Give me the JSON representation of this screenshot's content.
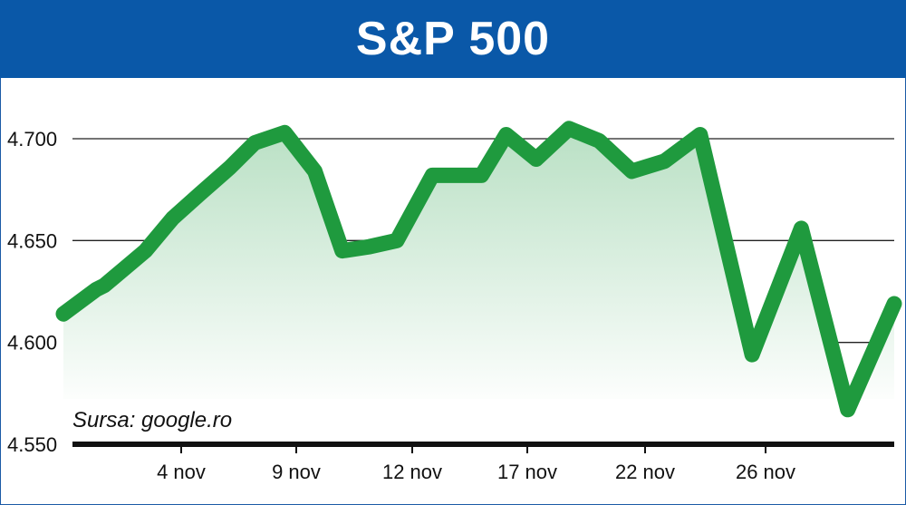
{
  "chart_data": {
    "type": "area",
    "title": "S&P 500",
    "source": "Sursa: google.ro",
    "xlabel": "",
    "ylabel": "",
    "ylim": [
      4550,
      4710
    ],
    "yticks": [
      4550,
      4600,
      4650,
      4700
    ],
    "ytick_labels": [
      "4.550",
      "4.600",
      "4.650",
      "4.700"
    ],
    "xtick_labels": [
      {
        "label": "4 nov",
        "index": 4
      },
      {
        "label": "9 nov",
        "index": 9
      },
      {
        "label": "12 nov",
        "index": 14
      },
      {
        "label": "17 nov",
        "index": 19
      },
      {
        "label": "22 nov",
        "index": 24
      },
      {
        "label": "26 nov",
        "index": 29
      }
    ],
    "grid": true,
    "colors": {
      "line": "#1f9a3e",
      "fill": "#cfe9d6",
      "title_bg": "#0a58a8"
    },
    "series": [
      {
        "values": [
          4614,
          4626,
          4628,
          4645,
          4661,
          4673,
          4686,
          4698,
          4703,
          4684,
          4645,
          4647,
          4650,
          4682,
          4682,
          4682,
          4702,
          4690,
          4705,
          4699,
          4684,
          4689,
          4702,
          4594,
          4656,
          4567,
          4619
        ]
      }
    ],
    "x_index": [
      0,
      1.2,
      1.5,
      3,
      4,
      5,
      6.1,
      7,
      8.1,
      9.2,
      10.2,
      11.2,
      12.2,
      13.5,
      14.5,
      15.3,
      16.2,
      17.3,
      18.5,
      19.6,
      20.8,
      22,
      23.3,
      25.2,
      27,
      28.7,
      30.4
    ]
  }
}
